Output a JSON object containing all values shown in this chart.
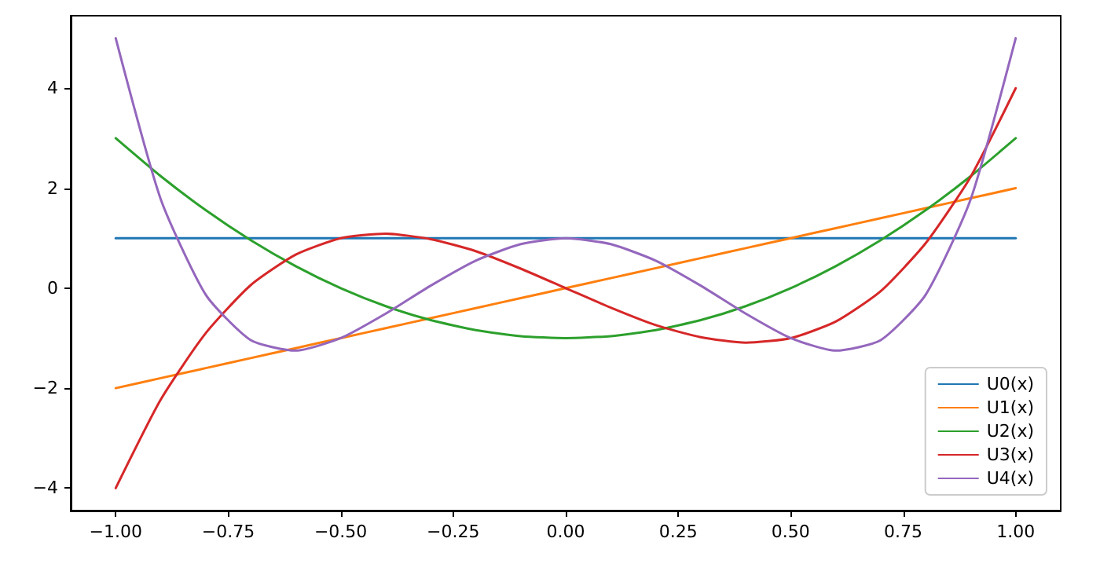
{
  "chart_data": {
    "type": "line",
    "x": [
      -1,
      -0.9,
      -0.8,
      -0.7,
      -0.6,
      -0.5,
      -0.4,
      -0.3,
      -0.2,
      -0.1,
      0,
      0.1,
      0.2,
      0.3,
      0.4,
      0.5,
      0.6,
      0.7,
      0.8,
      0.9,
      1
    ],
    "series": [
      {
        "name": "U0(x)",
        "color": "#1f77b4",
        "values": [
          1,
          1,
          1,
          1,
          1,
          1,
          1,
          1,
          1,
          1,
          1,
          1,
          1,
          1,
          1,
          1,
          1,
          1,
          1,
          1,
          1
        ]
      },
      {
        "name": "U1(x)",
        "color": "#ff7f0e",
        "values": [
          -2,
          -1.8,
          -1.6,
          -1.4,
          -1.2,
          -1,
          -0.8,
          -0.6,
          -0.4,
          -0.2,
          0,
          0.2,
          0.4,
          0.6,
          0.8,
          1,
          1.2,
          1.4,
          1.6,
          1.8,
          2
        ]
      },
      {
        "name": "U2(x)",
        "color": "#2ca02c",
        "values": [
          3,
          2.24,
          1.56,
          0.96,
          0.44,
          0,
          -0.36,
          -0.64,
          -0.84,
          -0.96,
          -1,
          -0.96,
          -0.84,
          -0.64,
          -0.36,
          0,
          0.44,
          0.96,
          1.56,
          2.24,
          3
        ]
      },
      {
        "name": "U3(x)",
        "color": "#d62728",
        "values": [
          -4,
          -2.23,
          -0.9,
          0.06,
          0.67,
          1,
          1.09,
          0.98,
          0.74,
          0.39,
          0,
          -0.39,
          -0.74,
          -0.98,
          -1.09,
          -1,
          -0.67,
          -0.06,
          0.9,
          2.23,
          4
        ]
      },
      {
        "name": "U4(x)",
        "color": "#9467bd",
        "values": [
          5,
          1.78,
          -0.13,
          -1.04,
          -1.25,
          -1,
          -0.51,
          0.05,
          0.55,
          0.88,
          1,
          0.88,
          0.55,
          0.05,
          -0.51,
          -1,
          -1.25,
          -1.04,
          -0.13,
          1.78,
          5
        ]
      }
    ],
    "xlim": [
      -1.1,
      1.1
    ],
    "xticks": [
      {
        "value": -1,
        "label": "−1.00"
      },
      {
        "value": -0.75,
        "label": "−0.75"
      },
      {
        "value": -0.5,
        "label": "−0.50"
      },
      {
        "value": -0.25,
        "label": "−0.25"
      },
      {
        "value": 0,
        "label": "0.00"
      },
      {
        "value": 0.25,
        "label": "0.25"
      },
      {
        "value": 0.5,
        "label": "0.50"
      },
      {
        "value": 0.75,
        "label": "0.75"
      },
      {
        "value": 1,
        "label": "1.00"
      }
    ],
    "ylim": [
      -4.45,
      5.45
    ],
    "yticks": [
      {
        "value": -4,
        "label": "−4"
      },
      {
        "value": -2,
        "label": "−2"
      },
      0,
      2,
      4
    ],
    "grid": false,
    "legend": "bottom right",
    "marker": "none",
    "line_style": "solid"
  }
}
